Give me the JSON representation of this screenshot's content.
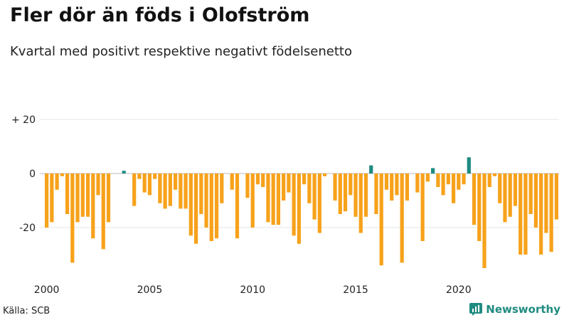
{
  "header": {
    "title": "Fler dör än föds i Olofström",
    "subtitle": "Kvartal med positivt respektive negativt födelsenetto"
  },
  "footer": {
    "source": "Källa: SCB",
    "brand": "Newsworthy"
  },
  "colors": {
    "positive": "#1f8b81",
    "negative": "#f7a21b",
    "brand": "#1f8b81"
  },
  "chart_data": {
    "type": "bar",
    "title": "Fler dör än föds i Olofström",
    "subtitle": "Kvartal med positivt respektive negativt födelsenetto",
    "xlabel": "",
    "ylabel": "",
    "ylim": [
      -36,
      22
    ],
    "y_ticks": [
      {
        "value": 20,
        "label": "+ 20"
      },
      {
        "value": 0,
        "label": "0"
      },
      {
        "value": -20,
        "label": "-20"
      }
    ],
    "x_ticks": [
      {
        "index": 0,
        "label": "2000"
      },
      {
        "index": 20,
        "label": "2005"
      },
      {
        "index": 40,
        "label": "2010"
      },
      {
        "index": 60,
        "label": "2015"
      },
      {
        "index": 80,
        "label": "2020"
      }
    ],
    "categories": [
      "2000K1",
      "2000K2",
      "2000K3",
      "2000K4",
      "2001K1",
      "2001K2",
      "2001K3",
      "2001K4",
      "2002K1",
      "2002K2",
      "2002K3",
      "2002K4",
      "2003K1",
      "2003K2",
      "2003K3",
      "2003K4",
      "2004K1",
      "2004K2",
      "2004K3",
      "2004K4",
      "2005K1",
      "2005K2",
      "2005K3",
      "2005K4",
      "2006K1",
      "2006K2",
      "2006K3",
      "2006K4",
      "2007K1",
      "2007K2",
      "2007K3",
      "2007K4",
      "2008K1",
      "2008K2",
      "2008K3",
      "2008K4",
      "2009K1",
      "2009K2",
      "2009K3",
      "2009K4",
      "2010K1",
      "2010K2",
      "2010K3",
      "2010K4",
      "2011K1",
      "2011K2",
      "2011K3",
      "2011K4",
      "2012K1",
      "2012K2",
      "2012K3",
      "2012K4",
      "2013K1",
      "2013K2",
      "2013K3",
      "2013K4",
      "2014K1",
      "2014K2",
      "2014K3",
      "2014K4",
      "2015K1",
      "2015K2",
      "2015K3",
      "2015K4",
      "2016K1",
      "2016K2",
      "2016K3",
      "2016K4",
      "2017K1",
      "2017K2",
      "2017K3",
      "2017K4",
      "2018K1",
      "2018K2",
      "2018K3",
      "2018K4",
      "2019K1",
      "2019K2",
      "2019K3",
      "2019K4",
      "2020K1",
      "2020K2",
      "2020K3",
      "2020K4",
      "2021K1",
      "2021K2",
      "2021K3",
      "2021K4",
      "2022K1",
      "2022K2",
      "2022K3",
      "2022K4",
      "2023K1",
      "2023K2",
      "2023K3",
      "2023K4",
      "2024K1",
      "2024K2",
      "2024K3",
      "2024K4"
    ],
    "values": [
      -20,
      -18,
      -6,
      -1,
      -15,
      -33,
      -18,
      -16,
      -16,
      -24,
      -8,
      -28,
      -18,
      0,
      0,
      1,
      0,
      -12,
      -2,
      -7,
      -8,
      -2,
      -11,
      -13,
      -12,
      -6,
      -13,
      -13,
      -23,
      -26,
      -15,
      -20,
      -25,
      -24,
      -11,
      0,
      -6,
      -24,
      0,
      -9,
      -20,
      -4,
      -5,
      -18,
      -19,
      -19,
      -10,
      -7,
      -23,
      -26,
      -4,
      -11,
      -17,
      -22,
      -1,
      0,
      -10,
      -15,
      -14,
      -8,
      -16,
      -22,
      -16,
      3,
      -15,
      -34,
      -6,
      -10,
      -8,
      -33,
      -10,
      0,
      -7,
      -25,
      -3,
      2,
      -5,
      -8,
      -4,
      -11,
      -6,
      -4,
      6,
      -19,
      -25,
      -35,
      -5,
      -1,
      -11,
      -18,
      -16,
      -12,
      -30,
      -30,
      -15,
      -20,
      -30,
      -22,
      -29,
      -17
    ]
  }
}
